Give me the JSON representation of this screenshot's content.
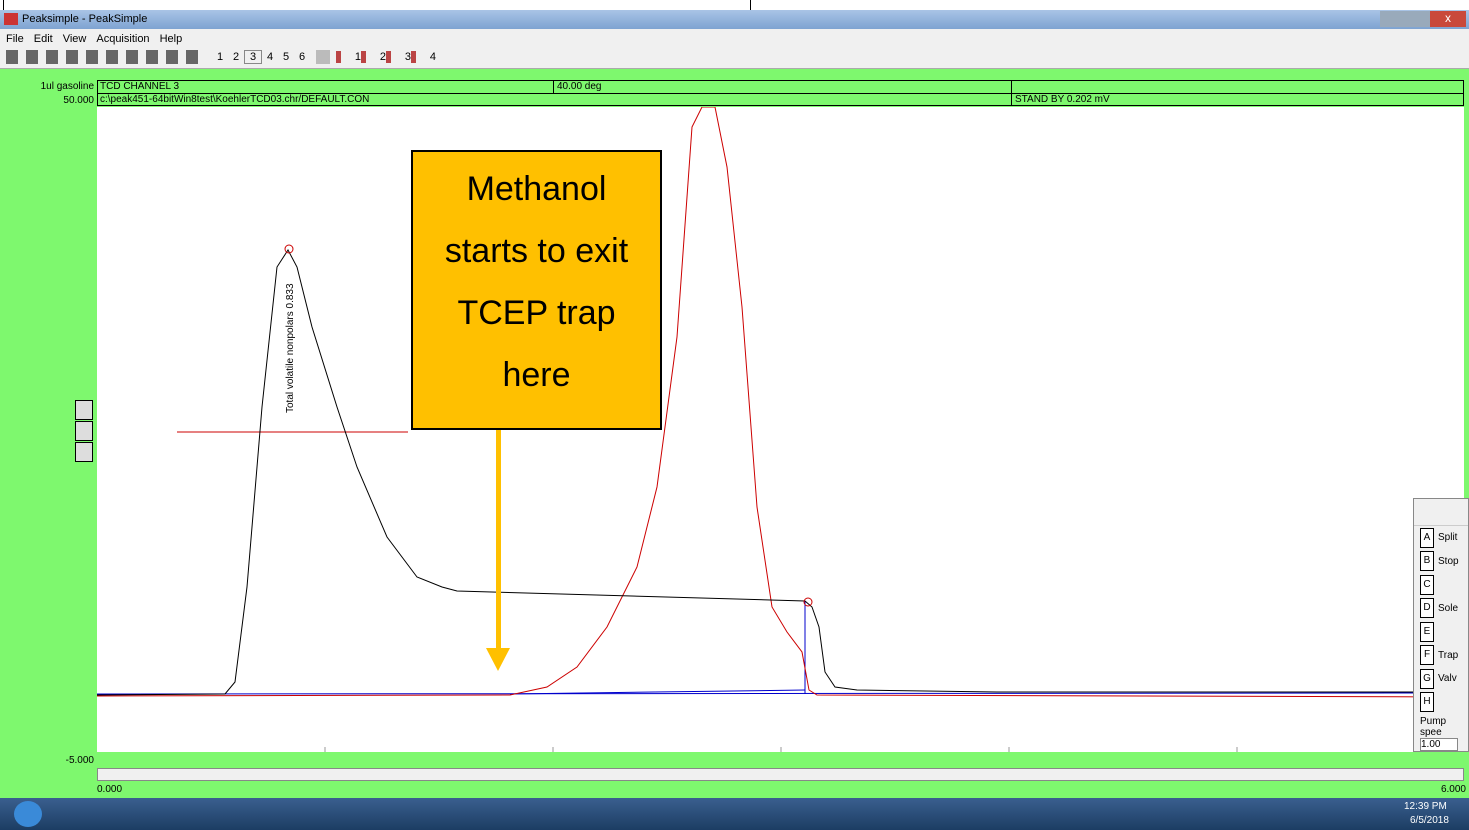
{
  "window": {
    "title": "Peaksimple - PeakSimple"
  },
  "menu": [
    "File",
    "Edit",
    "View",
    "Acquisition",
    "Help"
  ],
  "toolbar": {
    "channels": [
      "1",
      "2",
      "3",
      "4",
      "5",
      "6"
    ],
    "detectors": [
      "1",
      "2",
      "3",
      "4"
    ]
  },
  "header": {
    "sample": "1ul gasoline",
    "ymax": "50.000",
    "channel": "TCD CHANNEL 3",
    "temperature": "40.00 deg",
    "file": "c:\\peak451-64bitWin8test\\KoehlerTCD03.chr/DEFAULT.CON",
    "status": "STAND BY 0.202 mV"
  },
  "axis": {
    "ymin": "-5.000",
    "xmin": "0.000",
    "xmax": "6.000"
  },
  "peak_label": "Total volatile nonpolars 0.833",
  "annotation": [
    "Methanol",
    "starts to exit",
    "TCEP trap",
    "here"
  ],
  "side_panel": {
    "rows": [
      {
        "key": "A",
        "label": "Split"
      },
      {
        "key": "B",
        "label": "Stop"
      },
      {
        "key": "C",
        "label": ""
      },
      {
        "key": "D",
        "label": "Sole"
      },
      {
        "key": "E",
        "label": ""
      },
      {
        "key": "F",
        "label": "Trap"
      },
      {
        "key": "G",
        "label": "Valv"
      },
      {
        "key": "H",
        "label": ""
      }
    ],
    "pump_label": "Pump spee",
    "pump_value": "1.00"
  },
  "taskbar": {
    "time": "12:39 PM",
    "date": "6/5/2018"
  }
}
